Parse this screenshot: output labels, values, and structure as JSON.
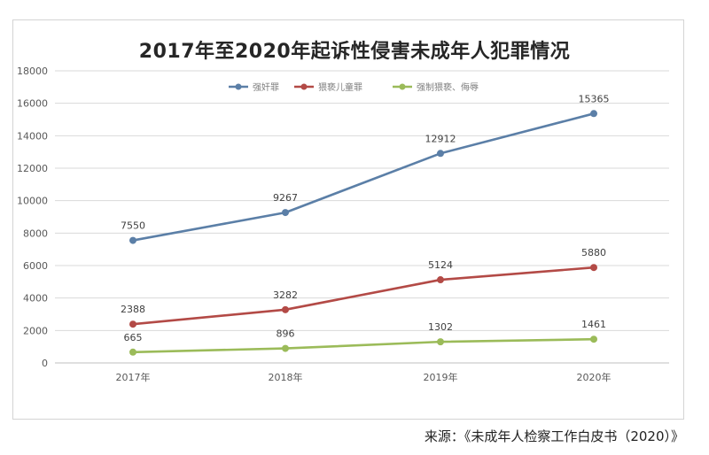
{
  "chart_data": {
    "type": "line",
    "title": "2017年至2020年起诉性侵害未成年人犯罪情况",
    "categories": [
      "2017年",
      "2018年",
      "2019年",
      "2020年"
    ],
    "series": [
      {
        "name": "强奸罪",
        "values": [
          7550,
          9267,
          12912,
          15365
        ],
        "color": "#5b7fa7"
      },
      {
        "name": "猥亵儿童罪",
        "values": [
          2388,
          3282,
          5124,
          5880
        ],
        "color": "#b34a46"
      },
      {
        "name": "强制猥亵、侮辱",
        "values": [
          665,
          896,
          1302,
          1461
        ],
        "color": "#9bbb59"
      }
    ],
    "ylim": [
      0,
      18000
    ],
    "yticks": [
      0,
      2000,
      4000,
      6000,
      8000,
      10000,
      12000,
      14000,
      16000,
      18000
    ],
    "grid": true,
    "legend": "top",
    "data_labels": true
  },
  "source": "来源：《未成年人检察工作白皮书（2020）》"
}
